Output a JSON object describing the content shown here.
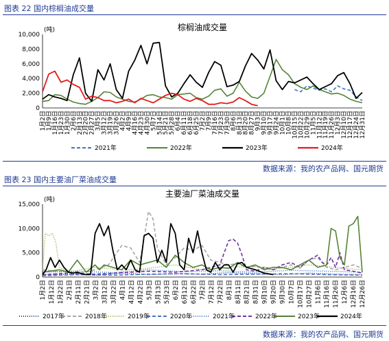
{
  "figures": [
    {
      "caption": "图表 22 国内棕榈油成交量",
      "source": "数据来源：我的农产品网、国元期货"
    },
    {
      "caption": "图表 23 国内主要油厂菜油成交量",
      "source": "数据来源：我的农产品网、国元期货"
    }
  ],
  "chart_data": [
    {
      "type": "line",
      "title": "棕榈油成交量",
      "ylabel": "(吨)",
      "ylim": [
        0,
        10000
      ],
      "yticks": [
        "0",
        "2,000",
        "4,000",
        "6,000",
        "8,000",
        "10,000"
      ],
      "ytick_values": [
        0,
        2000,
        4000,
        6000,
        8000,
        10000
      ],
      "xticks": [
        "1月2日",
        "1月9日",
        "1月16日",
        "1月23日",
        "1月30日",
        "2月6日",
        "2月13日",
        "2月20日",
        "2月27日",
        "3月5日",
        "3月12日",
        "3月19日",
        "3月26日",
        "4月2日",
        "4月9日",
        "4月16日",
        "4月23日",
        "4月30日",
        "5月7日",
        "5月14日",
        "5月21日",
        "5月28日",
        "6月4日",
        "6月11日",
        "6月18日",
        "6月25日",
        "7月2日",
        "7月9日",
        "7月16日",
        "7月23日",
        "7月30日",
        "8月6日",
        "8月13日",
        "8月20日",
        "8月27日",
        "9月3日",
        "9月10日",
        "9月17日",
        "9月24日",
        "10月1日",
        "10月8日",
        "10月15日",
        "10月22日",
        "10月29日",
        "11月5日",
        "11月12日",
        "11月19日",
        "11月26日",
        "12月3日",
        "12月10日",
        "12月17日",
        "12月24日",
        "12月31日"
      ],
      "xticks_shown": [
        "1月2日",
        "1月9日",
        "1月16日",
        "1月23日",
        "1月30日",
        "2月6日",
        "2月13日",
        "2月20日",
        "2月27日",
        "3月5日",
        "3月12日",
        "3月19日",
        "3月26日",
        "4月2日",
        "4月9日",
        "4月16日",
        "4月23日",
        "4月30日",
        "5月7日",
        "5月14日",
        "5月21日",
        "5月28日",
        "6月4日",
        "6月11日",
        "6月18日",
        "6月25日",
        "7月2日",
        "7月9日",
        "7月16日",
        "7月23日",
        "7月30日",
        "8月6日",
        "8月13日",
        "8月20日",
        "8月27日",
        "9月3日",
        "9月10日",
        "9月17日",
        "9月24日",
        "10月1日",
        "10月8日",
        "10月15日",
        "10月22日",
        "10月29日",
        "11月5日",
        "11月12日",
        "11月19日",
        "11月26日",
        "12月3日",
        "12月10日",
        "12月17日",
        "12月24日",
        "12月31日"
      ],
      "x_range_weeks": [
        0,
        52
      ],
      "legend_position": "bottom",
      "series": [
        {
          "name": "2021年",
          "color": "#4472c4",
          "dash": "5,3",
          "width": 1.6,
          "x": [
            0,
            2,
            4,
            6,
            8,
            10,
            12,
            14,
            16,
            18,
            20,
            22,
            24,
            26,
            28,
            30,
            32,
            34,
            36,
            38,
            40,
            41,
            42,
            43,
            44,
            45,
            46,
            47,
            48,
            49,
            50,
            51,
            52
          ],
          "y": [
            null,
            null,
            null,
            null,
            null,
            null,
            null,
            null,
            null,
            null,
            null,
            null,
            null,
            null,
            null,
            null,
            null,
            null,
            null,
            null,
            null,
            2500,
            2200,
            3000,
            2700,
            2400,
            2600,
            2200,
            3000,
            2600,
            2400,
            1500,
            1000
          ]
        },
        {
          "name": "2022年",
          "color": "#548235",
          "dash": "",
          "width": 1.6,
          "x": [
            0,
            1,
            2,
            3,
            4,
            5,
            6,
            7,
            8,
            9,
            10,
            11,
            12,
            13,
            14,
            15,
            16,
            17,
            18,
            19,
            20,
            21,
            22,
            23,
            24,
            25,
            26,
            27,
            28,
            29,
            30,
            31,
            32,
            33,
            34,
            35,
            36,
            37,
            38,
            39,
            40,
            41,
            42,
            43,
            44,
            45,
            46,
            47,
            48,
            49,
            50,
            51,
            52
          ],
          "y": [
            900,
            1000,
            1800,
            1700,
            1200,
            800,
            600,
            500,
            900,
            1400,
            2200,
            2100,
            1500,
            1200,
            900,
            800,
            1200,
            1700,
            1800,
            1500,
            1400,
            1200,
            1800,
            1900,
            2000,
            1400,
            1200,
            1600,
            2400,
            2600,
            1600,
            2000,
            3500,
            2300,
            1500,
            1300,
            2000,
            4300,
            6600,
            5200,
            4500,
            3300,
            2800,
            2500,
            3000,
            2500,
            2200,
            1900,
            2000,
            1700,
            1200,
            900,
            700
          ]
        },
        {
          "name": "2023年",
          "color": "#000000",
          "dash": "",
          "width": 1.8,
          "x": [
            0,
            1,
            2,
            3,
            4,
            5,
            6,
            7,
            8,
            9,
            10,
            11,
            12,
            13,
            14,
            15,
            16,
            17,
            18,
            19,
            20,
            21,
            22,
            23,
            24,
            25,
            26,
            27,
            28,
            29,
            30,
            31,
            32,
            33,
            34,
            35,
            36,
            37,
            38,
            39,
            40,
            41,
            42,
            43,
            44,
            45,
            46,
            47,
            48,
            49,
            50,
            51,
            52
          ],
          "y": [
            1200,
            1800,
            1500,
            1300,
            1000,
            4500,
            6800,
            2000,
            900,
            5200,
            3800,
            6000,
            2500,
            1300,
            5000,
            6500,
            8500,
            6000,
            8800,
            8900,
            3000,
            1500,
            2000,
            3300,
            4500,
            3500,
            2800,
            4800,
            6300,
            5800,
            2900,
            3100,
            3600,
            5700,
            7400,
            6500,
            5300,
            7900,
            3700,
            2500,
            3600,
            3400,
            3800,
            4200,
            3300,
            2500,
            2900,
            3300,
            4400,
            4800,
            3300,
            1300,
            2100
          ]
        },
        {
          "name": "2024年",
          "color": "#e31a1c",
          "dash": "",
          "width": 1.8,
          "x": [
            0,
            1,
            2,
            3,
            4,
            5,
            6,
            7,
            8,
            9,
            10,
            11,
            12,
            13,
            14,
            15,
            16,
            17,
            18,
            19,
            20,
            21,
            22,
            23,
            24,
            25,
            26,
            27,
            28,
            29,
            30,
            31,
            32,
            33,
            34,
            35
          ],
          "y": [
            2200,
            4600,
            5000,
            3500,
            3800,
            3200,
            2800,
            1200,
            1600,
            1400,
            1000,
            1000,
            700,
            900,
            1200,
            700,
            1300,
            1000,
            700,
            1200,
            1700,
            2000,
            1800,
            1200,
            900,
            1300,
            1000,
            500,
            500,
            700,
            600,
            800,
            1400,
            1000,
            500,
            300
          ]
        }
      ]
    },
    {
      "type": "line",
      "title": "主要油厂菜油成交量",
      "ylabel": "(吨)",
      "ylim": [
        0,
        15000
      ],
      "yticks": [
        "0",
        "5,000",
        "10,000",
        "15,000"
      ],
      "ytick_values": [
        0,
        5000,
        10000,
        15000
      ],
      "xticks": [
        "1月2日",
        "1月12日",
        "1月22日",
        "2月1日",
        "2月11日",
        "2月21日",
        "3月2日",
        "3月12日",
        "3月22日",
        "4月1日",
        "4月12日",
        "4月22日",
        "5月3日",
        "5月13日",
        "5月23日",
        "6月2日",
        "6月12日",
        "6月22日",
        "7月2日",
        "7月12日",
        "7月22日",
        "8月1日",
        "8月11日",
        "8月21日",
        "8月31日",
        "9月10日",
        "9月20日",
        "9月30日",
        "10月7日",
        "10月17日",
        "10月27日",
        "11月6日",
        "11月16日",
        "11月26日",
        "12月6日",
        "12月16日",
        "12月26日"
      ],
      "xticks_shown": [
        "1月2日",
        "1月12日",
        "1月22日",
        "2月1日",
        "2月11日",
        "2月21日",
        "3月2日",
        "3月12日",
        "3月22日",
        "4月1日",
        "4月12日",
        "4月22日",
        "5月3日",
        "5月13日",
        "5月23日",
        "6月2日",
        "6月12日",
        "6月22日",
        "7月2日",
        "7月12日",
        "7月22日",
        "8月1日",
        "8月11日",
        "8月21日",
        "8月31日",
        "9月10日",
        "9月20日",
        "9月30日",
        "10月7日",
        "10月17日",
        "10月27日",
        "11月6日",
        "11月16日",
        "11月26日",
        "12月6日",
        "12月16日",
        "12月26日"
      ],
      "x_range_days": [
        1,
        360
      ],
      "legend_position": "bottom",
      "series": [
        {
          "name": "2017年",
          "color": "#1f3a93",
          "dash": "1,2",
          "width": 1.6,
          "x": [
            1,
            30,
            60,
            90,
            120,
            150,
            180,
            210,
            240,
            270,
            300,
            330,
            360
          ],
          "y": [
            500,
            600,
            400,
            800,
            500,
            700,
            600,
            900,
            700,
            500,
            800,
            600,
            500
          ]
        },
        {
          "name": "2018年",
          "color": "#a6a6a6",
          "dash": "5,3",
          "width": 1.6,
          "x": [
            1,
            15,
            30,
            45,
            60,
            75,
            90,
            100,
            110,
            115,
            120,
            125,
            130,
            140,
            150,
            160,
            170,
            180,
            190,
            200,
            210,
            220,
            230,
            240,
            250,
            260,
            270,
            280,
            290,
            300,
            310,
            320,
            330,
            340,
            350,
            360
          ],
          "y": [
            1500,
            1200,
            1000,
            900,
            1500,
            2500,
            6500,
            6000,
            3000,
            8000,
            13500,
            12000,
            6000,
            2500,
            4000,
            6000,
            5500,
            6500,
            3500,
            3000,
            2500,
            2800,
            2000,
            2200,
            1800,
            1500,
            2000,
            2500,
            1800,
            3500,
            4000,
            2000,
            1500,
            2000,
            2500,
            1800
          ]
        },
        {
          "name": "2019年",
          "color": "#8fb04a",
          "dash": "1,2",
          "width": 1.6,
          "x": [
            1,
            4,
            8,
            12,
            16,
            20,
            25,
            35,
            60,
            90,
            120,
            150,
            180,
            210,
            240,
            270,
            300,
            330,
            360
          ],
          "y": [
            1500,
            9000,
            8500,
            9000,
            7000,
            2000,
            1500,
            1200,
            2000,
            1500,
            1800,
            2500,
            1500,
            2000,
            2200,
            1800,
            2500,
            2000,
            1500
          ]
        },
        {
          "name": "2020年",
          "color": "#4472c4",
          "dash": "5,3",
          "width": 1.6,
          "x": [
            1,
            40,
            80,
            120,
            160,
            200,
            240,
            280,
            320,
            360
          ],
          "y": [
            300,
            500,
            400,
            600,
            700,
            500,
            600,
            700,
            500,
            400
          ]
        },
        {
          "name": "2021年",
          "color": "#4472c4",
          "dash": "1,2",
          "width": 1.6,
          "x": [
            1,
            40,
            80,
            120,
            160,
            200,
            240,
            280,
            320,
            360
          ],
          "y": [
            1000,
            1200,
            900,
            1500,
            1100,
            1300,
            1000,
            1400,
            1200,
            1000
          ]
        },
        {
          "name": "2022年",
          "color": "#7030a0",
          "dash": "5,3",
          "width": 1.6,
          "x": [
            1,
            30,
            60,
            90,
            120,
            150,
            180,
            200,
            210,
            215,
            220,
            225,
            230,
            240,
            250,
            260,
            270,
            280,
            290,
            300,
            310,
            315,
            320,
            325,
            330,
            335,
            340,
            350,
            360
          ],
          "y": [
            500,
            800,
            600,
            900,
            1200,
            1000,
            1500,
            2500,
            7500,
            7800,
            7000,
            4500,
            1500,
            1200,
            2000,
            1500,
            2500,
            3000,
            2000,
            3500,
            4500,
            3000,
            2500,
            4000,
            2000,
            5000,
            1500,
            1200,
            800
          ]
        },
        {
          "name": "2023年",
          "color": "#548235",
          "dash": "",
          "width": 1.6,
          "x": [
            1,
            20,
            30,
            40,
            50,
            60,
            65,
            70,
            80,
            90,
            100,
            110,
            120,
            130,
            140,
            150,
            160,
            170,
            180,
            190,
            200,
            210,
            220,
            230,
            240,
            250,
            260,
            270,
            280,
            290,
            300,
            310,
            320,
            325,
            330,
            335,
            340,
            345,
            350,
            355,
            360
          ],
          "y": [
            1000,
            1500,
            1000,
            3500,
            1000,
            2500,
            1500,
            2500,
            2000,
            1500,
            3500,
            2500,
            3000,
            3500,
            2000,
            4500,
            3000,
            2000,
            2500,
            1500,
            2000,
            1800,
            3000,
            2000,
            2500,
            1500,
            2000,
            2000,
            1500,
            2500,
            3500,
            2000,
            2500,
            10000,
            9500,
            4000,
            2500,
            10500,
            11000,
            12500,
            1000
          ]
        },
        {
          "name": "2024年",
          "color": "#000000",
          "dash": "",
          "width": 1.8,
          "x": [
            1,
            5,
            10,
            15,
            20,
            25,
            30,
            35,
            40,
            45,
            50,
            55,
            60,
            65,
            70,
            75,
            80,
            85,
            90,
            95,
            100,
            105,
            110,
            115,
            120,
            125,
            130,
            135,
            140,
            145,
            150,
            155,
            160,
            165,
            170,
            175,
            180,
            185,
            190,
            195,
            200,
            205,
            210,
            215,
            220,
            225,
            230,
            240,
            250,
            260
          ],
          "y": [
            500,
            1500,
            4000,
            2000,
            3500,
            2000,
            1000,
            800,
            1000,
            700,
            500,
            600,
            9000,
            11000,
            8500,
            10500,
            5500,
            1500,
            2500,
            1500,
            3500,
            1500,
            1000,
            8500,
            9000,
            8000,
            3000,
            5500,
            3000,
            11000,
            9000,
            2500,
            1500,
            8000,
            5000,
            9500,
            5000,
            1500,
            1000,
            3000,
            1500,
            2500,
            2500,
            1000,
            2800,
            3000,
            2000,
            1500,
            800,
            500
          ]
        }
      ]
    }
  ]
}
